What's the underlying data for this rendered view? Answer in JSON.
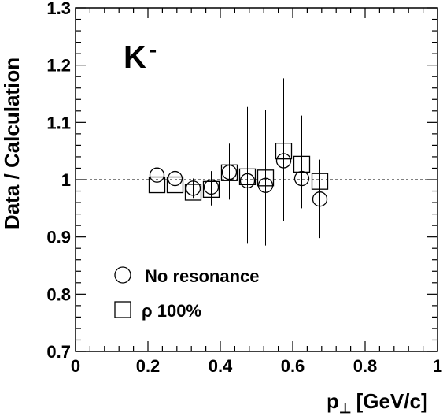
{
  "chart_data": {
    "type": "scatter",
    "xlabel": "p",
    "xlabel_sub": "⊥",
    "xlabel_unit": "[GeV/c]",
    "ylabel": "Data / Calculation",
    "xlim": [
      0,
      1
    ],
    "ylim": [
      0.7,
      1.3
    ],
    "x_ticks": [
      "0",
      "0.2",
      "0.4",
      "0.6",
      "0.8",
      "1"
    ],
    "y_ticks": [
      "0.7",
      "0.8",
      "0.9",
      "1",
      "1.1",
      "1.2",
      "1.3"
    ],
    "grid": false,
    "reference_line": 1.0,
    "annotation": {
      "text": "K",
      "superscript": "-"
    },
    "legend": {
      "placement": "bottom-left"
    },
    "series": [
      {
        "name": "No resonance",
        "marker": "circle",
        "points": [
          {
            "x": 0.225,
            "y": 1.008,
            "err_lo": 0.918,
            "err_hi": 1.058
          },
          {
            "x": 0.275,
            "y": 1.002,
            "err_lo": 0.962,
            "err_hi": 1.04
          },
          {
            "x": 0.325,
            "y": 0.985,
            "err_lo": 0.968,
            "err_hi": 1.002
          },
          {
            "x": 0.375,
            "y": 0.987,
            "err_lo": 0.955,
            "err_hi": 1.015
          },
          {
            "x": 0.425,
            "y": 1.013,
            "err_lo": 0.965,
            "err_hi": 1.063
          },
          {
            "x": 0.475,
            "y": 0.998,
            "err_lo": 0.888,
            "err_hi": 1.127
          },
          {
            "x": 0.525,
            "y": 0.99,
            "err_lo": 0.885,
            "err_hi": 1.122
          },
          {
            "x": 0.575,
            "y": 1.033,
            "err_lo": 0.928,
            "err_hi": 1.177
          },
          {
            "x": 0.625,
            "y": 1.002,
            "err_lo": 0.95,
            "err_hi": 1.112
          },
          {
            "x": 0.675,
            "y": 0.966,
            "err_lo": 0.898,
            "err_hi": 1.035
          }
        ]
      },
      {
        "name": "ρ 100%",
        "marker": "square",
        "points": [
          {
            "x": 0.225,
            "y": 0.991
          },
          {
            "x": 0.275,
            "y": 0.991
          },
          {
            "x": 0.325,
            "y": 0.978
          },
          {
            "x": 0.375,
            "y": 0.983
          },
          {
            "x": 0.425,
            "y": 1.012
          },
          {
            "x": 0.475,
            "y": 1.005
          },
          {
            "x": 0.525,
            "y": 1.003
          },
          {
            "x": 0.575,
            "y": 1.05
          },
          {
            "x": 0.625,
            "y": 1.027
          },
          {
            "x": 0.675,
            "y": 0.997
          }
        ]
      }
    ]
  }
}
